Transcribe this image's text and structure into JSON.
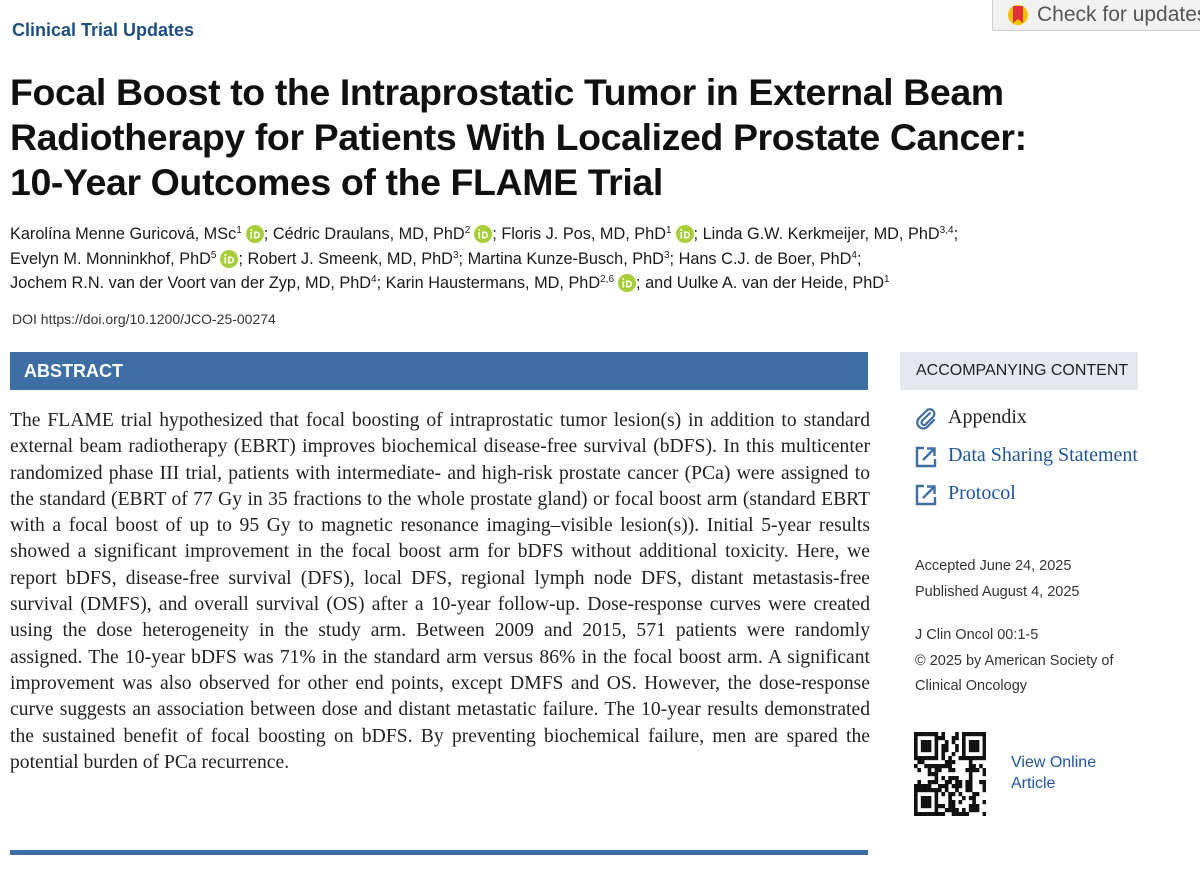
{
  "header": {
    "section": "Clinical Trial Updates",
    "check_updates": "Check for updates"
  },
  "title_lines": [
    "Focal Boost to the Intraprostatic Tumor in External Beam",
    "Radiotherapy for Patients With Localized Prostate Cancer:",
    "10-Year Outcomes of the FLAME Trial"
  ],
  "author_lines": [
    [
      {
        "name": "Karolína Menne Guricová, MSc",
        "sup": "1",
        "orcid": true,
        "sep": ";"
      },
      {
        "name": "Cédric Draulans, MD, PhD",
        "sup": "2",
        "orcid": true,
        "sep": ";"
      },
      {
        "name": "Floris J. Pos, MD, PhD",
        "sup": "1",
        "orcid": true,
        "sep": ";"
      },
      {
        "name": "Linda G.W. Kerkmeijer, MD, PhD",
        "sup": "3,4",
        "orcid": false,
        "sep": ";"
      }
    ],
    [
      {
        "name": "Evelyn M. Monninkhof, PhD",
        "sup": "5",
        "orcid": true,
        "sep": ";"
      },
      {
        "name": "Robert J. Smeenk, MD, PhD",
        "sup": "3",
        "orcid": false,
        "sep": ";"
      },
      {
        "name": "Martina Kunze-Busch, PhD",
        "sup": "3",
        "orcid": false,
        "sep": ";"
      },
      {
        "name": "Hans C.J. de Boer, PhD",
        "sup": "4",
        "orcid": false,
        "sep": ";"
      }
    ],
    [
      {
        "name": "Jochem R.N. van der Voort van der Zyp, MD, PhD",
        "sup": "4",
        "orcid": false,
        "sep": ";"
      },
      {
        "name": "Karin Haustermans, MD, PhD",
        "sup": "2,6",
        "orcid": true,
        "sep": ";"
      },
      {
        "name": "and Uulke A. van der Heide, PhD",
        "sup": "1",
        "orcid": false
      }
    ]
  ],
  "doi": {
    "label": "DOI",
    "url": "https://doi.org/10.1200/JCO-25-00274"
  },
  "abstract": {
    "heading": "ABSTRACT",
    "text": "The FLAME trial hypothesized that focal boosting of intraprostatic tumor lesion(s) in addition to standard external beam radiotherapy (EBRT) improves biochemical disease-free survival (bDFS). In this multicenter randomized phase III trial, patients with intermediate- and high-risk prostate cancer (PCa) were assigned to the standard (EBRT of 77 Gy in 35 fractions to the whole prostate gland) or focal boost arm (standard EBRT with a focal boost of up to 95 Gy to magnetic resonance imaging–visible lesion(s)). Initial 5-year results showed a significant improvement in the focal boost arm for bDFS without additional toxicity. Here, we report bDFS, disease-free survival (DFS), local DFS, regional lymph node DFS, distant metastasis-free survival (DMFS), and overall survival (OS) after a 10-year follow-up. Dose-response curves were created using the dose heterogeneity in the study arm. Between 2009 and 2015, 571 patients were randomly assigned. The 10-year bDFS was 71% in the standard arm versus 86% in the focal boost arm. A significant improvement was also observed for other end points, except DMFS and OS. However, the dose-response curve suggests an association between dose and distant metastatic failure. The 10-year results demonstrated the sustained benefit of focal boosting on bDFS. By preventing biochemical failure, men are spared the potential burden of PCa recurrence."
  },
  "sidebar": {
    "heading": "ACCOMPANYING CONTENT",
    "links": [
      {
        "icon": "clip",
        "label": "Appendix"
      },
      {
        "icon": "external",
        "label": "Data Sharing Statement"
      },
      {
        "icon": "external",
        "label": "Protocol"
      }
    ],
    "dates": [
      "Accepted June 24, 2025",
      "Published August 4, 2025"
    ],
    "citation": "J Clin Oncol 00:1-5",
    "copyright": "© 2025 by American Society of Clinical Oncology",
    "view_online": "View Online Article"
  }
}
